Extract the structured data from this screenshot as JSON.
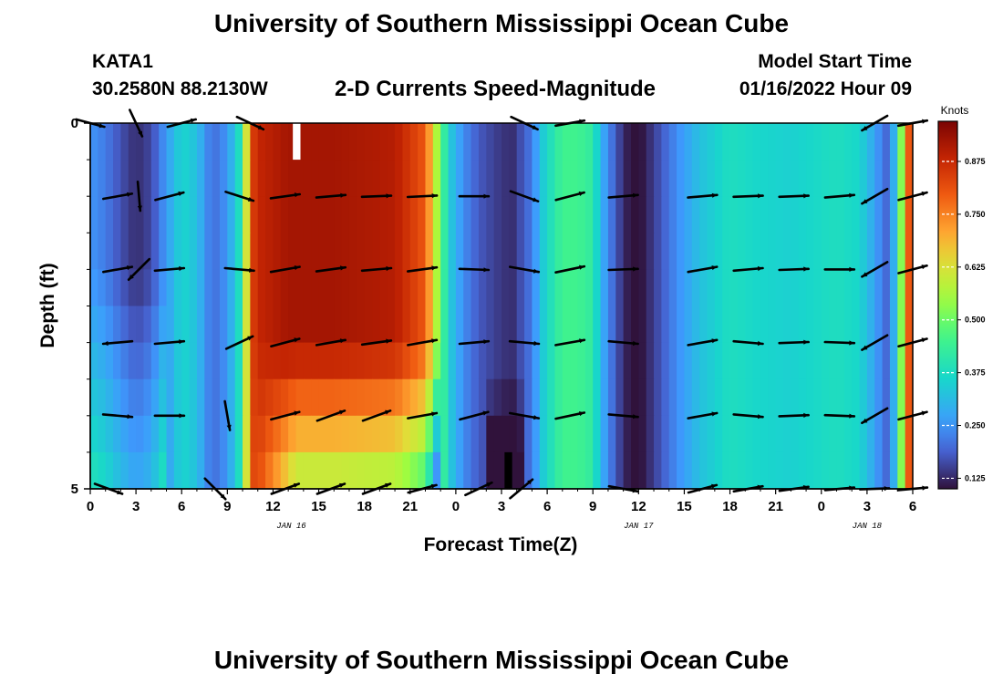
{
  "header": {
    "title": "University of Southern Mississippi Ocean Cube",
    "station": "KATA1",
    "coords": "30.2580N  88.2130W",
    "chart_title": "2-D Currents Speed-Magnitude",
    "model_label": "Model Start Time",
    "model_time": "01/16/2022 Hour 09"
  },
  "footer": {
    "title_repeat": "University of Southern Mississippi Ocean Cube"
  },
  "colors": {
    "low": "#30123b",
    "mid": "#a6f34a",
    "high": "#7a0403",
    "arrow": "#000000"
  },
  "chart_data": {
    "type": "heatmap",
    "title": "2-D Currents Speed-Magnitude",
    "xlabel": "Forecast Time(Z)",
    "ylabel": "Depth (ft)",
    "x_range_hours": [
      0,
      54
    ],
    "y_range_ft": [
      0,
      5
    ],
    "x_ticks": [
      "0",
      "3",
      "6",
      "9",
      "12",
      "15",
      "18",
      "21",
      "0",
      "3",
      "6",
      "9",
      "12",
      "15",
      "18",
      "21",
      "0",
      "3",
      "6"
    ],
    "y_ticks": [
      "0",
      "5"
    ],
    "date_labels": [
      {
        "label": "JAN 16",
        "hour": 13.2
      },
      {
        "label": "JAN 17",
        "hour": 36.0
      },
      {
        "label": "JAN 18",
        "hour": 51.0
      }
    ],
    "colorbar": {
      "label": "Knots",
      "ticks": [
        "0.125",
        "0.250",
        "0.375",
        "0.500",
        "0.625",
        "0.750",
        "0.875"
      ],
      "tick_values": [
        0.125,
        0.25,
        0.375,
        0.5,
        0.625,
        0.75,
        0.875
      ],
      "range": [
        0.1,
        0.97
      ]
    },
    "speed_profile_knots": [
      [
        0,
        0.25
      ],
      [
        1,
        0.22
      ],
      [
        2,
        0.17
      ],
      [
        3,
        0.13
      ],
      [
        4,
        0.16
      ],
      [
        5,
        0.26
      ],
      [
        6,
        0.36
      ],
      [
        7,
        0.32
      ],
      [
        8,
        0.2
      ],
      [
        9,
        0.25
      ],
      [
        10,
        0.42
      ],
      [
        10.5,
        0.82
      ],
      [
        11,
        0.88
      ],
      [
        13,
        0.92
      ],
      [
        16,
        0.92
      ],
      [
        20,
        0.9
      ],
      [
        22,
        0.8
      ],
      [
        22.8,
        0.55
      ],
      [
        23.5,
        0.35
      ],
      [
        24.5,
        0.24
      ],
      [
        25.5,
        0.18
      ],
      [
        27,
        0.14
      ],
      [
        27.7,
        0.13
      ],
      [
        29,
        0.22
      ],
      [
        29.8,
        0.35
      ],
      [
        31,
        0.45
      ],
      [
        32,
        0.45
      ],
      [
        33,
        0.42
      ],
      [
        33.5,
        0.3
      ],
      [
        34.5,
        0.18
      ],
      [
        35,
        0.13
      ],
      [
        35.8,
        0.08
      ],
      [
        36.5,
        0.12
      ],
      [
        37.5,
        0.18
      ],
      [
        38.5,
        0.24
      ],
      [
        40,
        0.32
      ],
      [
        42,
        0.38
      ],
      [
        44,
        0.36
      ],
      [
        46,
        0.35
      ],
      [
        47,
        0.36
      ],
      [
        49,
        0.38
      ],
      [
        50.5,
        0.36
      ],
      [
        51.2,
        0.3
      ],
      [
        52,
        0.22
      ],
      [
        52.5,
        0.18
      ],
      [
        53,
        0.4
      ],
      [
        53.4,
        0.6
      ],
      [
        53.6,
        0.75
      ],
      [
        54,
        0.88
      ]
    ],
    "depth_rows_ft": [
      0,
      0.5,
      1,
      1.5,
      2,
      2.5,
      3,
      3.5,
      4,
      4.5,
      5
    ],
    "vectors": [
      {
        "t": 0,
        "d": 0,
        "dir": 105
      },
      {
        "t": 3,
        "d": 0,
        "dir": 155
      },
      {
        "t": 6,
        "d": 0,
        "dir": 75
      },
      {
        "t": 10.5,
        "d": 0,
        "dir": 115
      },
      {
        "t": 28.5,
        "d": 0,
        "dir": 115
      },
      {
        "t": 31.5,
        "d": 0,
        "dir": 80
      },
      {
        "t": 51.5,
        "d": 0,
        "dir": 240
      },
      {
        "t": 54,
        "d": 0,
        "dir": 80
      },
      {
        "t": 1.8,
        "d": 1,
        "dir": 80
      },
      {
        "t": 3.2,
        "d": 1,
        "dir": 175
      },
      {
        "t": 5.2,
        "d": 1,
        "dir": 75
      },
      {
        "t": 9.8,
        "d": 1,
        "dir": 108
      },
      {
        "t": 12.8,
        "d": 1,
        "dir": 82
      },
      {
        "t": 15.8,
        "d": 1,
        "dir": 85
      },
      {
        "t": 18.8,
        "d": 1,
        "dir": 88
      },
      {
        "t": 21.8,
        "d": 1,
        "dir": 87
      },
      {
        "t": 25.2,
        "d": 1,
        "dir": 90
      },
      {
        "t": 28.5,
        "d": 1,
        "dir": 110
      },
      {
        "t": 31.5,
        "d": 1,
        "dir": 75
      },
      {
        "t": 35,
        "d": 1,
        "dir": 85
      },
      {
        "t": 40.2,
        "d": 1,
        "dir": 85
      },
      {
        "t": 43.2,
        "d": 1,
        "dir": 88
      },
      {
        "t": 46.2,
        "d": 1,
        "dir": 88
      },
      {
        "t": 49.2,
        "d": 1,
        "dir": 85
      },
      {
        "t": 51.5,
        "d": 1,
        "dir": 240
      },
      {
        "t": 54,
        "d": 1,
        "dir": 75
      },
      {
        "t": 1.8,
        "d": 2,
        "dir": 80
      },
      {
        "t": 3.2,
        "d": 2,
        "dir": 225
      },
      {
        "t": 5.2,
        "d": 2,
        "dir": 85
      },
      {
        "t": 9.8,
        "d": 2,
        "dir": 95
      },
      {
        "t": 12.8,
        "d": 2,
        "dir": 80
      },
      {
        "t": 15.8,
        "d": 2,
        "dir": 82
      },
      {
        "t": 18.8,
        "d": 2,
        "dir": 85
      },
      {
        "t": 21.8,
        "d": 2,
        "dir": 82
      },
      {
        "t": 25.2,
        "d": 2,
        "dir": 92
      },
      {
        "t": 28.5,
        "d": 2,
        "dir": 100
      },
      {
        "t": 31.5,
        "d": 2,
        "dir": 78
      },
      {
        "t": 35,
        "d": 2,
        "dir": 88
      },
      {
        "t": 40.2,
        "d": 2,
        "dir": 80
      },
      {
        "t": 43.2,
        "d": 2,
        "dir": 85
      },
      {
        "t": 46.2,
        "d": 2,
        "dir": 88
      },
      {
        "t": 49.2,
        "d": 2,
        "dir": 90
      },
      {
        "t": 51.5,
        "d": 2,
        "dir": 240
      },
      {
        "t": 54,
        "d": 2,
        "dir": 75
      },
      {
        "t": 1.8,
        "d": 3,
        "dir": 265
      },
      {
        "t": 5.2,
        "d": 3,
        "dir": 85
      },
      {
        "t": 9.8,
        "d": 3,
        "dir": 65
      },
      {
        "t": 12.8,
        "d": 3,
        "dir": 75
      },
      {
        "t": 15.8,
        "d": 3,
        "dir": 80
      },
      {
        "t": 18.8,
        "d": 3,
        "dir": 82
      },
      {
        "t": 21.8,
        "d": 3,
        "dir": 80
      },
      {
        "t": 25.2,
        "d": 3,
        "dir": 85
      },
      {
        "t": 28.5,
        "d": 3,
        "dir": 95
      },
      {
        "t": 31.5,
        "d": 3,
        "dir": 80
      },
      {
        "t": 35,
        "d": 3,
        "dir": 95
      },
      {
        "t": 40.2,
        "d": 3,
        "dir": 80
      },
      {
        "t": 43.2,
        "d": 3,
        "dir": 95
      },
      {
        "t": 46.2,
        "d": 3,
        "dir": 88
      },
      {
        "t": 49.2,
        "d": 3,
        "dir": 92
      },
      {
        "t": 51.5,
        "d": 3,
        "dir": 240
      },
      {
        "t": 54,
        "d": 3,
        "dir": 75
      },
      {
        "t": 1.8,
        "d": 4,
        "dir": 95
      },
      {
        "t": 5.2,
        "d": 4,
        "dir": 90
      },
      {
        "t": 9,
        "d": 4,
        "dir": 170
      },
      {
        "t": 12.8,
        "d": 4,
        "dir": 75
      },
      {
        "t": 15.8,
        "d": 4,
        "dir": 70
      },
      {
        "t": 18.8,
        "d": 4,
        "dir": 70
      },
      {
        "t": 21.8,
        "d": 4,
        "dir": 80
      },
      {
        "t": 25.2,
        "d": 4,
        "dir": 75
      },
      {
        "t": 28.5,
        "d": 4,
        "dir": 100
      },
      {
        "t": 31.5,
        "d": 4,
        "dir": 78
      },
      {
        "t": 35,
        "d": 4,
        "dir": 95
      },
      {
        "t": 40.2,
        "d": 4,
        "dir": 80
      },
      {
        "t": 43.2,
        "d": 4,
        "dir": 95
      },
      {
        "t": 46.2,
        "d": 4,
        "dir": 88
      },
      {
        "t": 49.2,
        "d": 4,
        "dir": 92
      },
      {
        "t": 51.5,
        "d": 4,
        "dir": 240
      },
      {
        "t": 54,
        "d": 4,
        "dir": 75
      },
      {
        "t": 1.2,
        "d": 5,
        "dir": 110
      },
      {
        "t": 8.2,
        "d": 5,
        "dir": 135
      },
      {
        "t": 12.8,
        "d": 5,
        "dir": 70
      },
      {
        "t": 15.8,
        "d": 5,
        "dir": 70
      },
      {
        "t": 18.8,
        "d": 5,
        "dir": 70
      },
      {
        "t": 21.8,
        "d": 5,
        "dir": 75
      },
      {
        "t": 25.5,
        "d": 5,
        "dir": 65
      },
      {
        "t": 28.3,
        "d": 5,
        "dir": 50
      },
      {
        "t": 35,
        "d": 5,
        "dir": 100
      },
      {
        "t": 40.2,
        "d": 5,
        "dir": 75
      },
      {
        "t": 43.2,
        "d": 5,
        "dir": 80
      },
      {
        "t": 46.2,
        "d": 5,
        "dir": 82
      },
      {
        "t": 49.2,
        "d": 5,
        "dir": 85
      },
      {
        "t": 51.5,
        "d": 5,
        "dir": 88
      },
      {
        "t": 54,
        "d": 5,
        "dir": 85
      }
    ]
  }
}
